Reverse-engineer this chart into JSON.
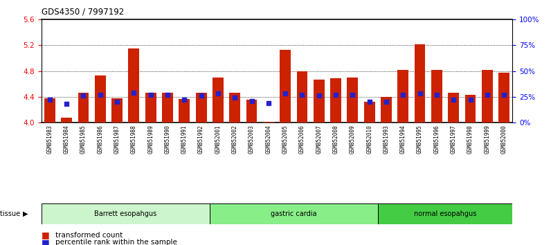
{
  "title": "GDS4350 / 7997192",
  "samples": [
    "GSM851983",
    "GSM851984",
    "GSM851985",
    "GSM851986",
    "GSM851987",
    "GSM851988",
    "GSM851989",
    "GSM851990",
    "GSM851991",
    "GSM851992",
    "GSM852001",
    "GSM852002",
    "GSM852003",
    "GSM852004",
    "GSM852005",
    "GSM852006",
    "GSM852007",
    "GSM852008",
    "GSM852009",
    "GSM852010",
    "GSM851993",
    "GSM851994",
    "GSM851995",
    "GSM851996",
    "GSM851997",
    "GSM851998",
    "GSM851999",
    "GSM852000"
  ],
  "red_values": [
    4.38,
    4.07,
    4.46,
    4.73,
    4.38,
    5.15,
    4.46,
    4.46,
    4.37,
    4.46,
    4.7,
    4.46,
    4.35,
    4.01,
    5.13,
    4.8,
    4.67,
    4.69,
    4.7,
    4.32,
    4.4,
    4.82,
    5.22,
    4.82,
    4.46,
    4.43,
    4.82,
    4.78
  ],
  "blue_values_pct": [
    22,
    18,
    26,
    27,
    20,
    29,
    27,
    27,
    22,
    26,
    28,
    24,
    21,
    19,
    28,
    27,
    26,
    27,
    27,
    20,
    20,
    27,
    28,
    27,
    22,
    22,
    27,
    27
  ],
  "groups": [
    {
      "label": "Barrett esopahgus",
      "start": 0,
      "end": 10,
      "color": "#ccf5cc"
    },
    {
      "label": "gastric cardia",
      "start": 10,
      "end": 20,
      "color": "#88ee88"
    },
    {
      "label": "normal esopahgus",
      "start": 20,
      "end": 28,
      "color": "#44cc44"
    }
  ],
  "ylim_left": [
    4.0,
    5.6
  ],
  "ylim_right": [
    0,
    100
  ],
  "yticks_left": [
    4.0,
    4.4,
    4.8,
    5.2,
    5.6
  ],
  "yticks_right": [
    0,
    25,
    50,
    75,
    100
  ],
  "ytick_labels_right": [
    "0%",
    "25%",
    "50%",
    "75%",
    "100%"
  ],
  "dotted_lines": [
    4.4,
    4.8,
    5.2
  ],
  "bar_color": "#cc2200",
  "dot_color": "#2222cc",
  "bar_width": 0.65,
  "baseline": 4.0,
  "plot_bg": "#ffffff"
}
